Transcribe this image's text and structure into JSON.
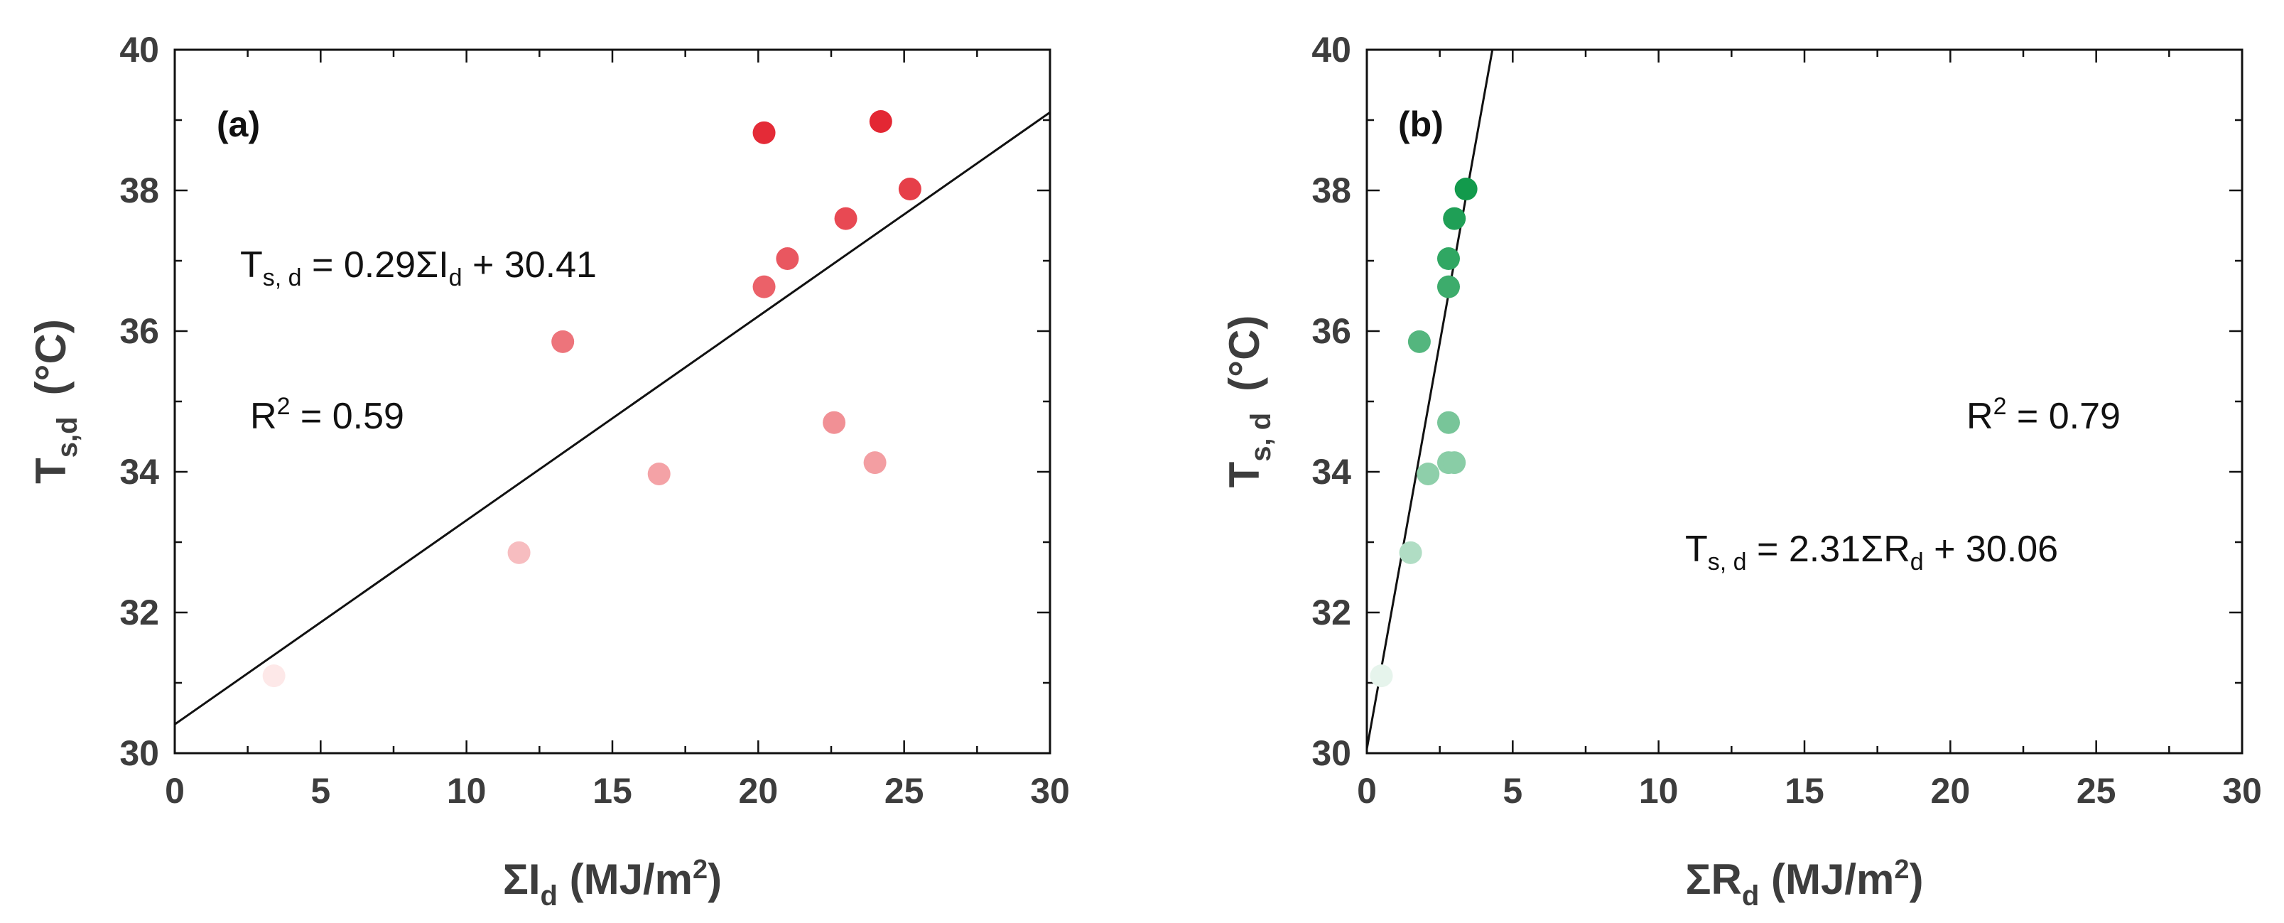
{
  "chart_data": [
    {
      "type": "scatter",
      "panel_label": "(a)",
      "xlabel": {
        "main": "ΣI",
        "sub": "d",
        "unit_pre": " (MJ/m",
        "sup": "2",
        "unit_post": ")"
      },
      "ylabel": {
        "main": "T",
        "sub": "s,d",
        "unit": "(°C)"
      },
      "xlim": [
        0,
        30
      ],
      "ylim": [
        30,
        40
      ],
      "xticks": [
        "0",
        "5",
        "10",
        "15",
        "20",
        "25",
        "30"
      ],
      "yticks": [
        "30",
        "32",
        "34",
        "36",
        "38",
        "40"
      ],
      "x": [
        3.4,
        11.8,
        13.3,
        16.6,
        20.2,
        20.2,
        21.0,
        22.6,
        23.0,
        24.0,
        24.2,
        25.2
      ],
      "y": [
        31.1,
        32.85,
        35.85,
        33.97,
        38.82,
        36.63,
        37.03,
        34.7,
        37.6,
        34.13,
        38.98,
        38.02
      ],
      "fit": {
        "slope": 0.29,
        "intercept": 30.41
      },
      "equation": {
        "lhs": "T",
        "lhs_sub": "s, d",
        "rhs_pre": " = 0.29ΣI",
        "rhs_sub": "d",
        "rhs_post": " + 30.41"
      },
      "r2": {
        "pre": "R",
        "sup": "2",
        "post": " = 0.59"
      },
      "color_scale": {
        "low": "#fde8e8",
        "high": "#e32733"
      }
    },
    {
      "type": "scatter",
      "panel_label": "(b)",
      "xlabel": {
        "main": "ΣR",
        "sub": "d",
        "unit_pre": " (MJ/m",
        "sup": "2",
        "unit_post": ")"
      },
      "ylabel": {
        "main": "T",
        "sub": "s, d",
        "unit": "(°C)"
      },
      "xlim": [
        0,
        30
      ],
      "ylim": [
        30,
        40
      ],
      "xticks": [
        "0",
        "5",
        "10",
        "15",
        "20",
        "25",
        "30"
      ],
      "yticks": [
        "30",
        "32",
        "34",
        "36",
        "38",
        "40"
      ],
      "x": [
        0.5,
        1.5,
        1.8,
        2.1,
        2.8,
        2.8,
        2.8,
        2.8,
        3.0,
        3.0,
        3.4
      ],
      "y": [
        31.1,
        32.85,
        35.85,
        33.97,
        36.63,
        37.03,
        34.7,
        34.13,
        37.6,
        34.13,
        38.02
      ],
      "fit": {
        "slope": 2.31,
        "intercept": 30.06
      },
      "equation": {
        "lhs": "T",
        "lhs_sub": "s, d",
        "rhs_pre": " = 2.31ΣR",
        "rhs_sub": "d",
        "rhs_post": " + 30.06"
      },
      "r2": {
        "pre": "R",
        "sup": "2",
        "post": " = 0.79"
      },
      "color_scale": {
        "low": "#e6f4ec",
        "high": "#129a4c"
      }
    }
  ]
}
